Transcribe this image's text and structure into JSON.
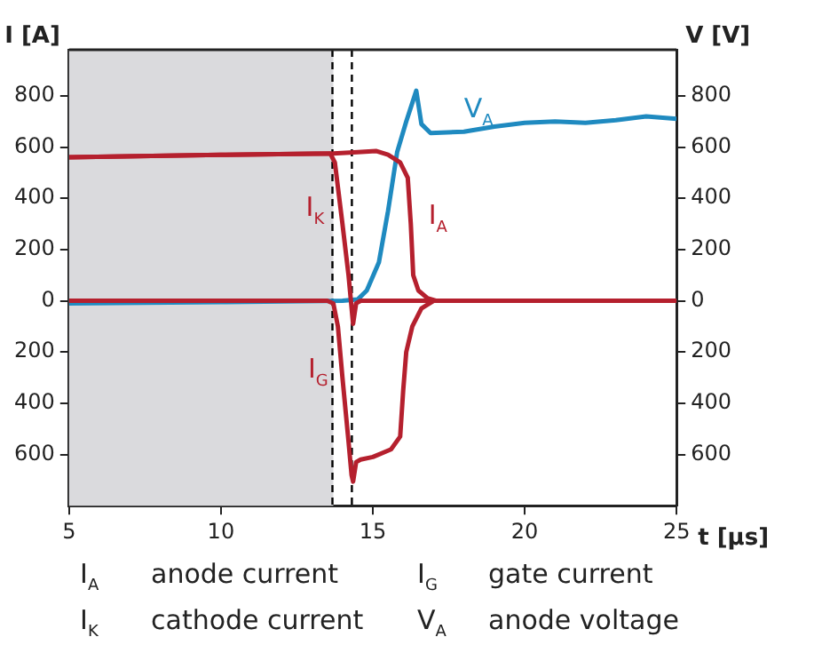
{
  "chart_data": {
    "type": "line",
    "xlabel": "t [µs]",
    "ylabel": "I [A]",
    "y2label": "V [V]",
    "xlim": [
      5,
      25
    ],
    "xticks": [
      5,
      10,
      15,
      20,
      25
    ],
    "ylim": [
      -800,
      980
    ],
    "yticks": [
      {
        "value": -600,
        "label": "600"
      },
      {
        "value": -400,
        "label": "400"
      },
      {
        "value": -200,
        "label": "200"
      },
      0,
      200,
      400,
      600,
      800
    ],
    "y2lim": [
      -800,
      980
    ],
    "y2ticks": [
      {
        "value": -600,
        "label": "600"
      },
      {
        "value": -400,
        "label": "400"
      },
      {
        "value": -200,
        "label": "200"
      },
      0,
      200,
      400,
      600,
      800
    ],
    "grid": false,
    "legend": false,
    "marker": "none",
    "line_style": "solid",
    "series": [
      {
        "name": "I$_{K}$",
        "color": "#b5202e",
        "x": [
          5,
          10,
          13.6,
          13.75,
          14.0,
          14.2,
          14.35,
          14.45,
          14.6,
          25
        ],
        "values": [
          560,
          570,
          575,
          540,
          300,
          100,
          -90,
          -10,
          0,
          0
        ]
      },
      {
        "name": "I$_{A}$",
        "color": "#b5202e",
        "x": [
          5,
          10,
          13.7,
          14.5,
          15.1,
          15.5,
          15.9,
          16.15,
          16.25,
          16.33,
          16.5,
          16.8,
          17.1,
          25
        ],
        "values": [
          560,
          570,
          575,
          580,
          585,
          570,
          540,
          480,
          300,
          100,
          40,
          10,
          0,
          0
        ]
      },
      {
        "name": "I$_{G}$",
        "color": "#b5202e",
        "x": [
          5,
          13.5,
          13.7,
          13.85,
          14.0,
          14.2,
          14.3,
          14.35,
          14.45,
          14.6,
          15.0,
          15.6,
          15.9,
          16.0,
          16.1,
          16.3,
          16.6,
          17.0,
          25
        ],
        "values": [
          0,
          0,
          -10,
          -100,
          -300,
          -550,
          -680,
          -706,
          -630,
          -620,
          -610,
          -580,
          -530,
          -350,
          -200,
          -100,
          -30,
          0,
          0
        ]
      },
      {
        "name": "V$_{A}$",
        "color": "#1f8ac0",
        "x": [
          5,
          10,
          14,
          14.5,
          14.8,
          15.2,
          15.5,
          15.8,
          16.1,
          16.43,
          16.6,
          16.9,
          18,
          19,
          20,
          21,
          22,
          23,
          24,
          25
        ],
        "values": [
          -10,
          -5,
          0,
          5,
          40,
          150,
          350,
          580,
          700,
          820,
          690,
          655,
          660,
          680,
          695,
          700,
          695,
          705,
          720,
          710
        ]
      }
    ],
    "bands": [
      {
        "axis": "x",
        "from": 5,
        "to": 13.7,
        "color": "#dadadd"
      }
    ],
    "ref_lines": [
      {
        "axis": "x",
        "value": 13.67,
        "color": "#000000",
        "line_style": "dashed"
      },
      {
        "axis": "x",
        "value": 14.31,
        "color": "#000000",
        "line_style": "dashed"
      }
    ],
    "annotations": [
      "I$_{A}$ anode current",
      "I$_{G}$ gate current",
      "I$_{K}$ cathode current",
      "V$_{A}$ anode voltage"
    ]
  }
}
